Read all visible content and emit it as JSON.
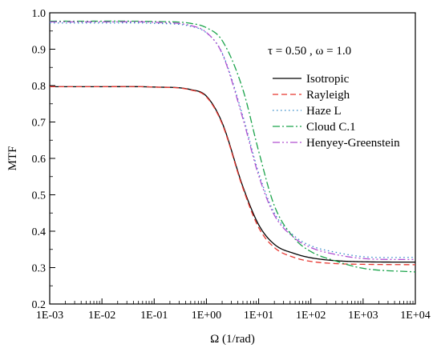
{
  "chart_data": {
    "type": "line",
    "title": "",
    "xlabel": "Ω (1/rad)",
    "ylabel": "MTF",
    "xscale": "log",
    "xlim": [
      0.001,
      10000
    ],
    "ylim": [
      0.2,
      1.0
    ],
    "xticks": [
      0.001,
      0.01,
      0.1,
      1,
      10,
      100,
      1000,
      10000
    ],
    "xtick_labels": [
      "1E-03",
      "1E-02",
      "1E-01",
      "1E+00",
      "1E+01",
      "1E+02",
      "1E+03",
      "1E+04"
    ],
    "yticks": [
      0.2,
      0.3,
      0.4,
      0.5,
      0.6,
      0.7,
      0.8,
      0.9,
      1.0
    ],
    "ytick_labels": [
      "0.2",
      "0.3",
      "0.4",
      "0.5",
      "0.6",
      "0.7",
      "0.8",
      "0.9",
      "1.0"
    ],
    "grid": false,
    "legend_position": "right",
    "annotation": "τ  = 0.50 , ω  = 1.0",
    "x": [
      0.001,
      0.01,
      0.1,
      0.5,
      1,
      2,
      5,
      10,
      20,
      50,
      100,
      300,
      1000,
      10000
    ],
    "series": [
      {
        "name": "Isotropic",
        "color": "#000000",
        "dash": "solid",
        "values": [
          0.797,
          0.797,
          0.796,
          0.789,
          0.771,
          0.698,
          0.522,
          0.418,
          0.364,
          0.338,
          0.327,
          0.319,
          0.316,
          0.315
        ]
      },
      {
        "name": "Rayleigh",
        "color": "#e8362f",
        "dash": "dashed",
        "values": [
          0.797,
          0.797,
          0.796,
          0.788,
          0.769,
          0.695,
          0.518,
          0.41,
          0.355,
          0.327,
          0.317,
          0.311,
          0.309,
          0.308
        ]
      },
      {
        "name": "Haze L",
        "color": "#2d86c6",
        "dash": "dotted",
        "values": [
          0.972,
          0.972,
          0.971,
          0.963,
          0.945,
          0.89,
          0.716,
          0.56,
          0.45,
          0.385,
          0.36,
          0.342,
          0.33,
          0.328
        ]
      },
      {
        "name": "Cloud C.1",
        "color": "#1aa34a",
        "dash": "dashdot",
        "values": [
          0.977,
          0.977,
          0.976,
          0.971,
          0.959,
          0.924,
          0.789,
          0.62,
          0.47,
          0.378,
          0.344,
          0.318,
          0.298,
          0.288
        ]
      },
      {
        "name": "Henyey-Greenstein",
        "color": "#b04fd1",
        "dash": "dashdotdot",
        "values": [
          0.975,
          0.975,
          0.974,
          0.965,
          0.946,
          0.888,
          0.709,
          0.553,
          0.444,
          0.38,
          0.355,
          0.336,
          0.325,
          0.322
        ]
      }
    ]
  }
}
